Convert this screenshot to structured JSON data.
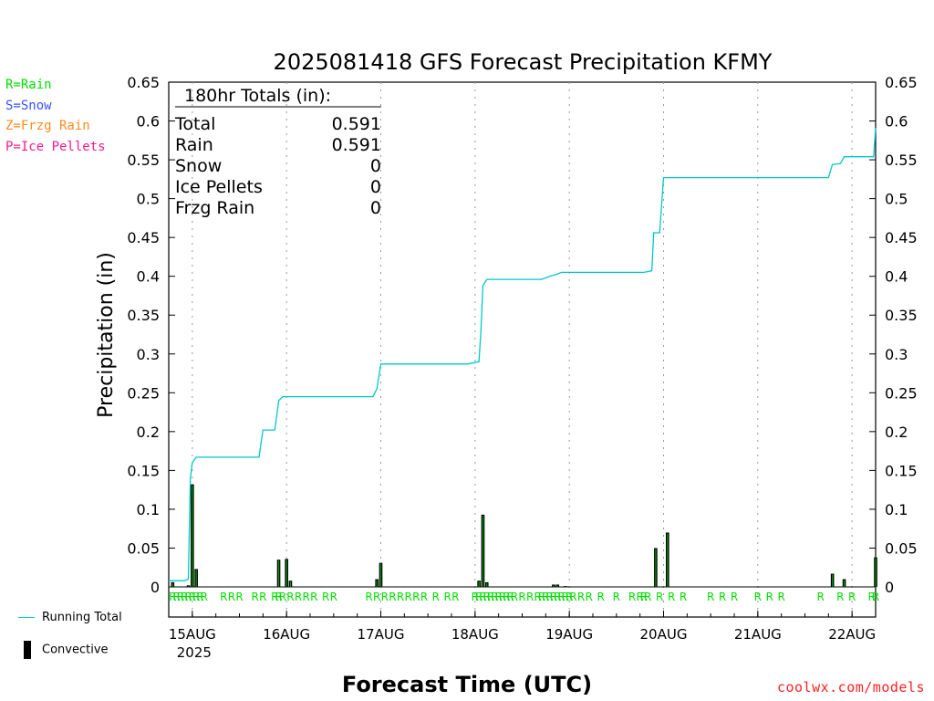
{
  "title": "2025081418 GFS Forecast Precipitation KFMY",
  "ylabel": "Precipitation  (in)",
  "xlabel": "Forecast Time (UTC)",
  "credit": "coolwx.com/models",
  "type_legend": [
    {
      "text": "R=Rain",
      "color": "#00e000"
    },
    {
      "text": "S=Snow",
      "color": "#3c50ff"
    },
    {
      "text": "Z=Frzg Rain",
      "color": "#ff8a1e"
    },
    {
      "text": "P=Ice Pellets",
      "color": "#ff1a8c"
    }
  ],
  "key": {
    "running_total": "Running Total",
    "convective": "Convective"
  },
  "totals_box": {
    "heading": "180hr Totals (in):",
    "rows": [
      {
        "label": "Total",
        "value": "0.591"
      },
      {
        "label": "Rain",
        "value": "0.591"
      },
      {
        "label": "Snow",
        "value": "0"
      },
      {
        "label": "Ice Pellets",
        "value": "0"
      },
      {
        "label": "Frzg Rain",
        "value": "0"
      }
    ]
  },
  "chart_data": {
    "type": "line",
    "title": "2025081418 GFS Forecast Precipitation KFMY",
    "xlabel": "Forecast Time (UTC)",
    "ylabel": "Precipitation  (in)",
    "x_unit": "hours since 2025-08-14 18Z",
    "xlim": [
      0,
      180
    ],
    "ylim": [
      -0.0,
      0.65
    ],
    "y_ticks": [
      0,
      0.05,
      0.1,
      0.15,
      0.2,
      0.25,
      0.3,
      0.35,
      0.4,
      0.45,
      0.5,
      0.55,
      0.6,
      0.65
    ],
    "y_tick_labels": [
      "0",
      "0.05",
      "0.1",
      "0.15",
      "0.2",
      "0.25",
      "0.3",
      "0.35",
      "0.4",
      "0.45",
      "0.5",
      "0.55",
      "0.6",
      "0.65"
    ],
    "x_ticks": [
      {
        "x": 6,
        "label": "15AUG",
        "sublabel": "2025"
      },
      {
        "x": 30,
        "label": "16AUG"
      },
      {
        "x": 54,
        "label": "17AUG"
      },
      {
        "x": 78,
        "label": "18AUG"
      },
      {
        "x": 102,
        "label": "19AUG"
      },
      {
        "x": 126,
        "label": "20AUG"
      },
      {
        "x": 150,
        "label": "21AUG"
      },
      {
        "x": 174,
        "label": "22AUG"
      }
    ],
    "grid": "vertical dotted at day boundaries",
    "series": [
      {
        "name": "Running Total",
        "color": "#00c8c8",
        "x": [
          0,
          4,
          5,
          5.5,
          6,
          7,
          21,
          23,
          24,
          27,
          27.5,
          28,
          29,
          31,
          52,
          53,
          54,
          76,
          79,
          79.5,
          80,
          81,
          95,
          97,
          99,
          100,
          121,
          123,
          123.5,
          125,
          126,
          168,
          169,
          171,
          172,
          179.5,
          180
        ],
        "y": [
          0.008,
          0.008,
          0.01,
          0.14,
          0.16,
          0.167,
          0.167,
          0.167,
          0.202,
          0.202,
          0.22,
          0.24,
          0.245,
          0.245,
          0.245,
          0.255,
          0.287,
          0.287,
          0.29,
          0.33,
          0.388,
          0.396,
          0.396,
          0.4,
          0.403,
          0.405,
          0.405,
          0.407,
          0.456,
          0.456,
          0.527,
          0.527,
          0.544,
          0.545,
          0.554,
          0.554,
          0.591
        ]
      },
      {
        "name": "Convective",
        "color": "#000000",
        "type": "bar",
        "x": [
          1,
          5,
          6,
          7,
          28,
          30,
          31,
          53,
          54,
          79,
          80,
          81,
          98,
          99,
          101,
          124,
          127,
          169,
          172,
          180
        ],
        "y": [
          0.006,
          0.002,
          0.132,
          0.023,
          0.035,
          0.036,
          0.008,
          0.01,
          0.031,
          0.008,
          0.093,
          0.006,
          0.003,
          0.003,
          0.001,
          0.05,
          0.07,
          0.017,
          0.01,
          0.038
        ]
      }
    ],
    "ptype_markers": {
      "letter": "R",
      "color": "#00e000",
      "x": [
        1,
        2,
        3,
        4,
        5,
        6,
        7,
        8,
        9,
        14,
        16,
        18,
        22,
        24,
        27,
        28,
        29,
        31,
        33,
        35,
        37,
        40,
        42,
        51,
        53,
        55,
        57,
        59,
        61,
        63,
        65,
        68,
        71,
        73,
        78,
        79,
        80,
        81,
        82,
        83,
        84,
        85,
        86,
        87,
        88,
        90,
        92,
        94,
        95,
        96,
        97,
        98,
        99,
        100,
        101,
        102,
        103,
        105,
        107,
        110,
        114,
        118,
        120,
        121,
        122,
        125,
        128,
        131,
        138,
        141,
        144,
        150,
        153,
        156,
        166,
        171,
        174,
        179,
        180
      ]
    }
  }
}
